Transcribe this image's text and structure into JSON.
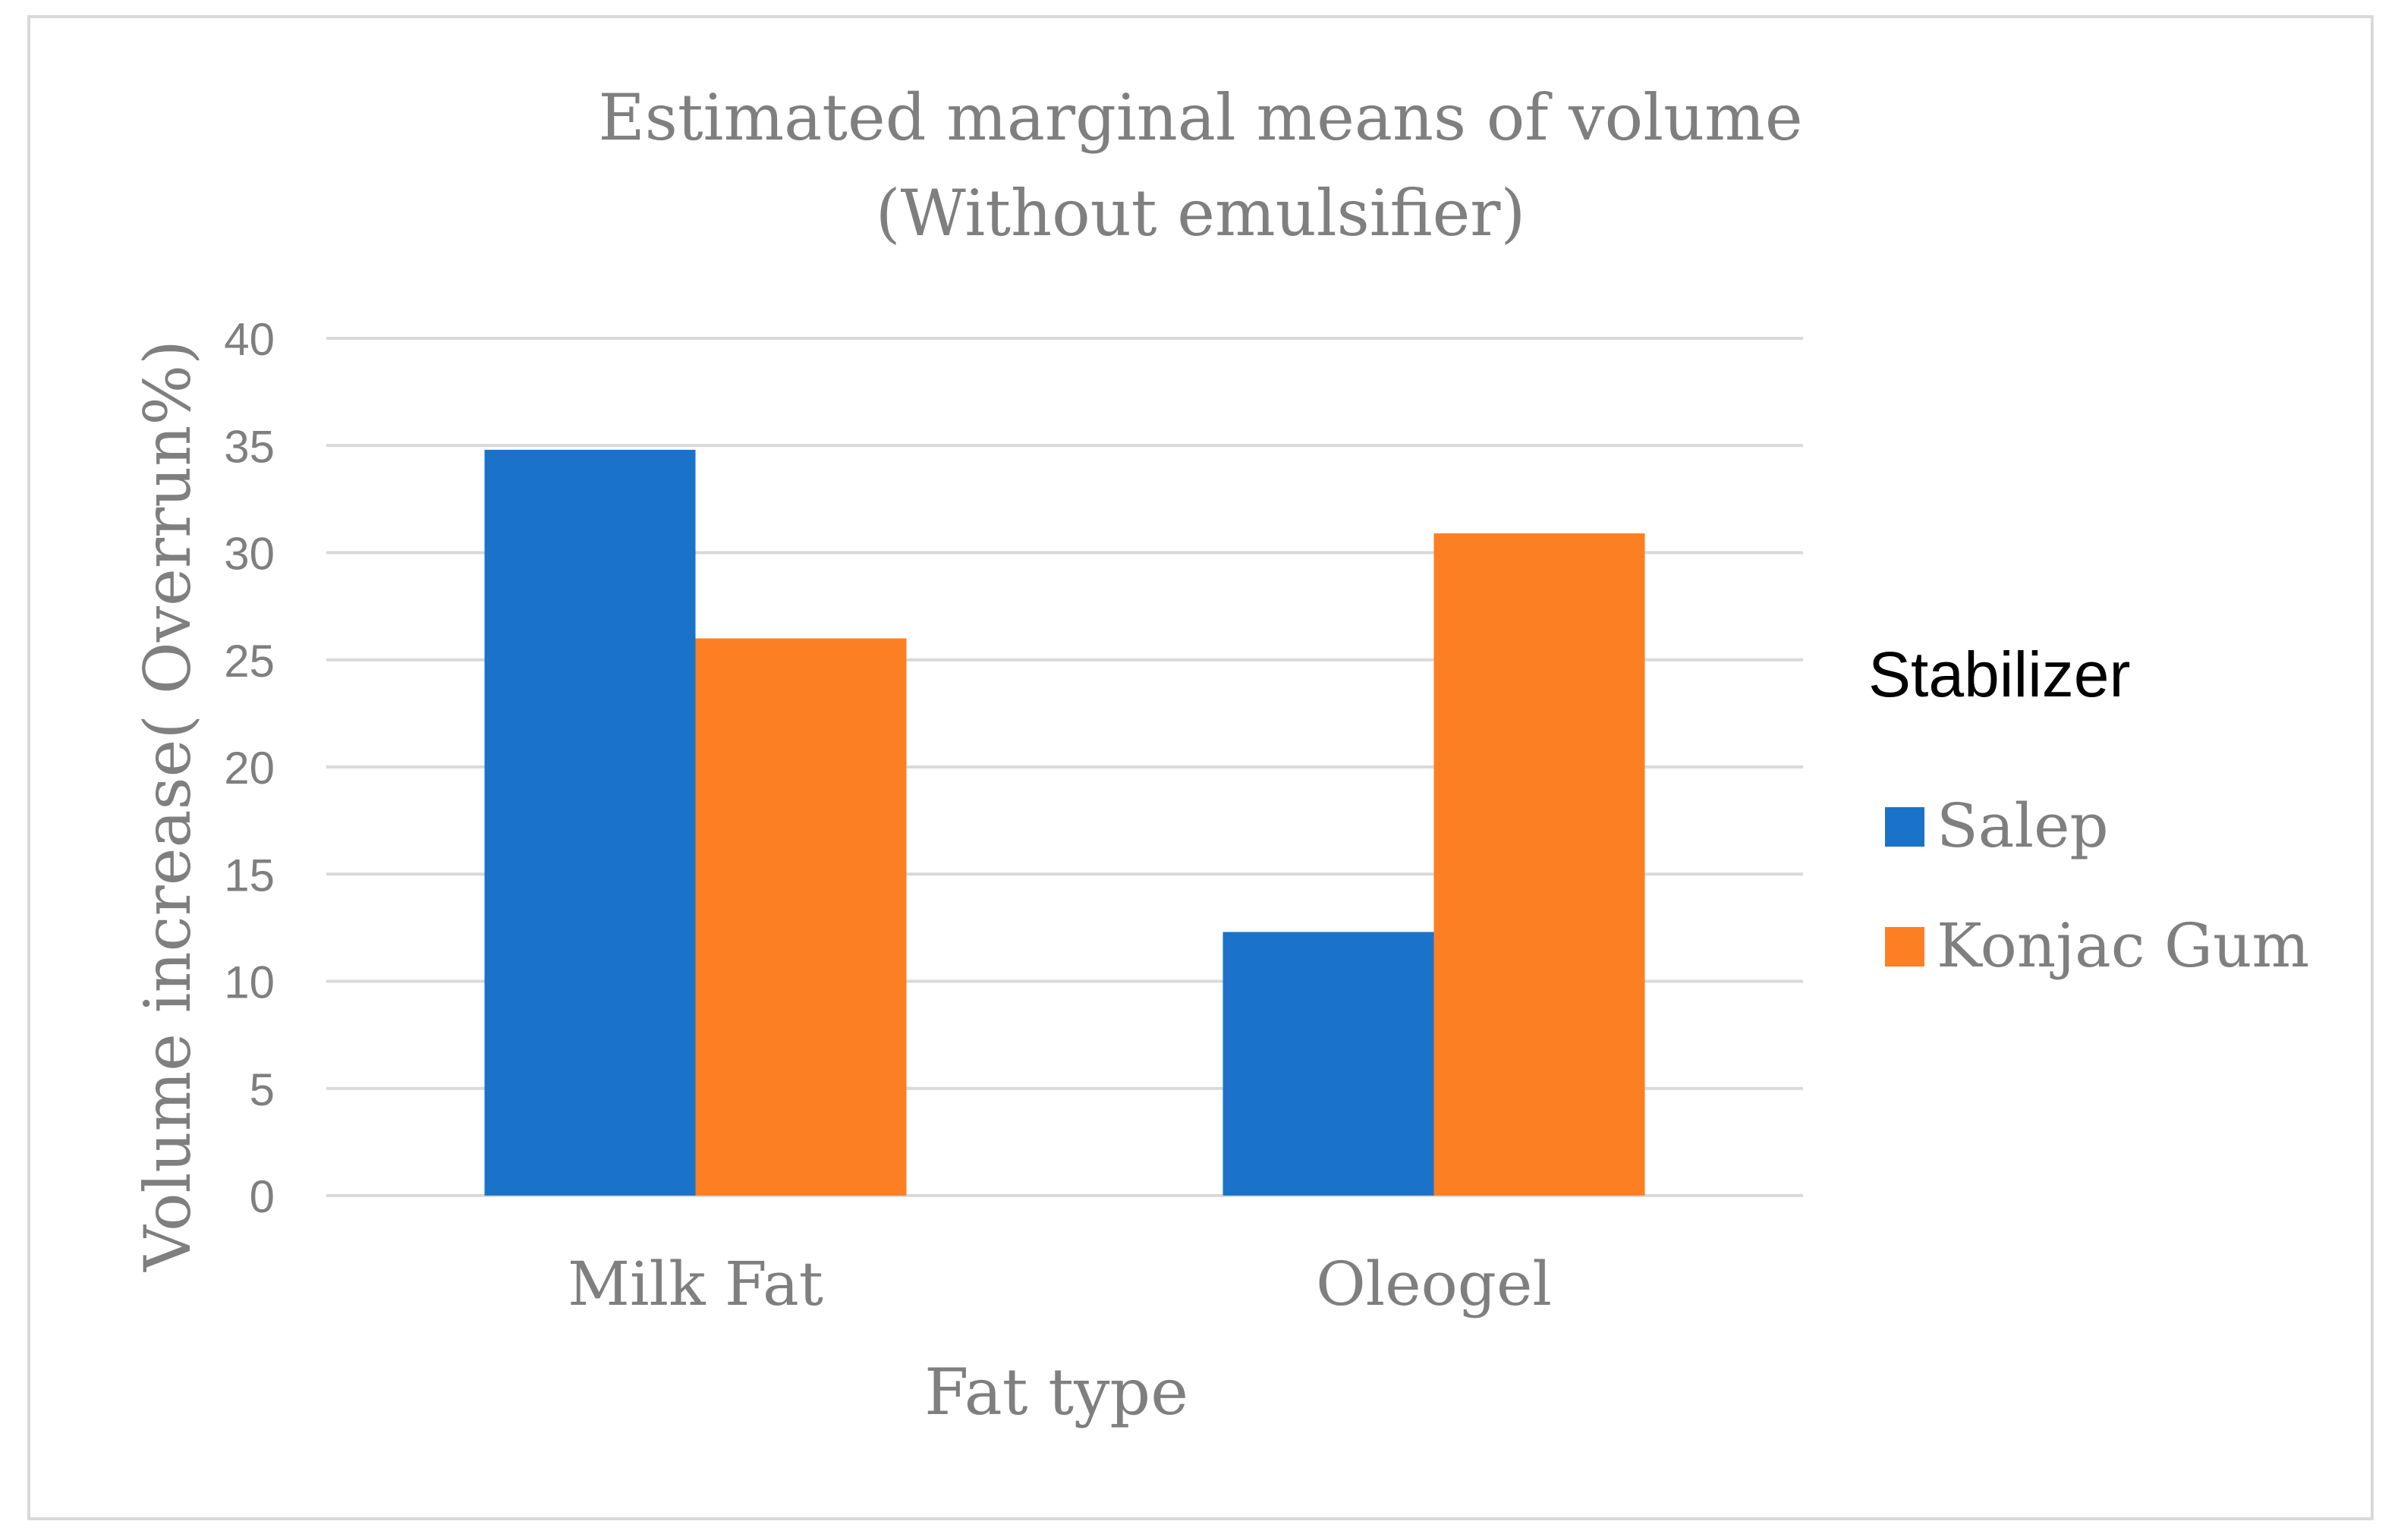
{
  "chart_data": {
    "type": "bar",
    "title": "Estimated marginal means of volume",
    "subtitle": "(Without emulsifier)",
    "xlabel": "Fat type",
    "ylabel": "Volume increase( Overrun%)",
    "categories": [
      "Milk Fat",
      "Oleogel"
    ],
    "series": [
      {
        "name": "Salep",
        "values": [
          34.8,
          12.3
        ],
        "color": "#1a73c8"
      },
      {
        "name": "Konjac Gum",
        "values": [
          26.0,
          30.9
        ],
        "color": "#fd7f24"
      }
    ],
    "ylim": [
      0,
      40
    ],
    "yticks": [
      "0",
      "5",
      "10",
      "15",
      "20",
      "25",
      "30",
      "35",
      "40"
    ],
    "ytick_values": [
      0,
      5,
      10,
      15,
      20,
      25,
      30,
      35,
      40
    ],
    "grid": true,
    "legend_title": "Stabilizer",
    "legend_position": "right",
    "colors": {
      "text": "#7f7f7f",
      "legend_title": "#000000",
      "grid": "#d9d9d9",
      "frame": "#d9d9d9"
    }
  }
}
